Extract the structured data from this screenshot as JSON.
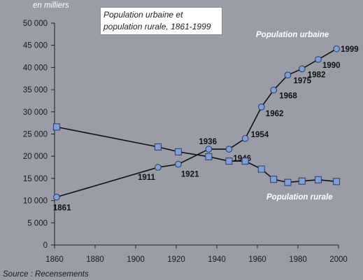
{
  "chart_data": {
    "type": "line",
    "title": "Population urbaine et population rurale, 1861-1999",
    "unit_label": "en milliers",
    "source": "Source : Recensements",
    "xlim": [
      1860,
      2000
    ],
    "ylim": [
      0,
      50000
    ],
    "x_ticks": [
      1860,
      1880,
      1900,
      1920,
      1940,
      1960,
      1980,
      2000
    ],
    "y_ticks": [
      {
        "value": 0,
        "label": "0"
      },
      {
        "value": 5000,
        "label": "5 000"
      },
      {
        "value": 10000,
        "label": "10 000"
      },
      {
        "value": 15000,
        "label": "15 000"
      },
      {
        "value": 20000,
        "label": "20 000"
      },
      {
        "value": 25000,
        "label": "25 000"
      },
      {
        "value": 30000,
        "label": "30 000"
      },
      {
        "value": 35000,
        "label": "35 000"
      },
      {
        "value": 40000,
        "label": "40 000"
      },
      {
        "value": 45000,
        "label": "45 000"
      },
      {
        "value": 50000,
        "label": "50 000"
      }
    ],
    "grid": false,
    "series": [
      {
        "name": "Population urbaine",
        "marker": "circle",
        "color": "#7ea0d6",
        "points": [
          {
            "x": 1861,
            "y": 10800,
            "label": "1861"
          },
          {
            "x": 1911,
            "y": 17500,
            "label": "1911"
          },
          {
            "x": 1921,
            "y": 18200,
            "label": "1921"
          },
          {
            "x": 1936,
            "y": 21600,
            "label": "1936"
          },
          {
            "x": 1946,
            "y": 21600,
            "label": "1946"
          },
          {
            "x": 1954,
            "y": 24000,
            "label": "1954"
          },
          {
            "x": 1962,
            "y": 31100,
            "label": "1962"
          },
          {
            "x": 1968,
            "y": 34900,
            "label": "1968"
          },
          {
            "x": 1975,
            "y": 38300,
            "label": "1975"
          },
          {
            "x": 1982,
            "y": 39700,
            "label": "1982"
          },
          {
            "x": 1990,
            "y": 41800,
            "label": "1990"
          },
          {
            "x": 1999,
            "y": 44200,
            "label": "1999"
          }
        ]
      },
      {
        "name": "Population rurale",
        "marker": "square",
        "color": "#7ea0d6",
        "points": [
          {
            "x": 1861,
            "y": 26600
          },
          {
            "x": 1911,
            "y": 22100
          },
          {
            "x": 1921,
            "y": 21000
          },
          {
            "x": 1936,
            "y": 19900
          },
          {
            "x": 1946,
            "y": 18900
          },
          {
            "x": 1954,
            "y": 18900
          },
          {
            "x": 1962,
            "y": 17100
          },
          {
            "x": 1968,
            "y": 14800
          },
          {
            "x": 1975,
            "y": 14100
          },
          {
            "x": 1982,
            "y": 14400
          },
          {
            "x": 1990,
            "y": 14700
          },
          {
            "x": 1999,
            "y": 14300
          }
        ]
      }
    ]
  }
}
